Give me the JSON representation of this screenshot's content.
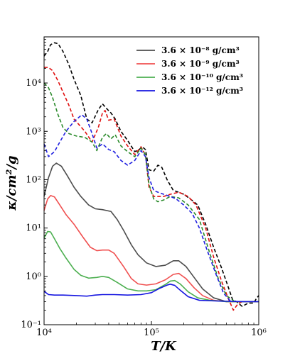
{
  "chart_data": {
    "type": "line",
    "xlabel": "T/K",
    "ylabel": "κ/cm²/g",
    "x_scale": "log",
    "y_scale": "log",
    "xlim": [
      10000,
      1000000
    ],
    "ylim": [
      0.1,
      90000
    ],
    "x_ticks": [
      {
        "value": 10000,
        "label": "10⁴"
      },
      {
        "value": 100000,
        "label": "10⁵"
      },
      {
        "value": 1000000,
        "label": "10⁶"
      }
    ],
    "y_ticks": [
      {
        "value": 0.1,
        "label": "10⁻¹"
      },
      {
        "value": 1,
        "label": "10⁰"
      },
      {
        "value": 10,
        "label": "10¹"
      },
      {
        "value": 100,
        "label": "10²"
      },
      {
        "value": 1000,
        "label": "10³"
      },
      {
        "value": 10000,
        "label": "10⁴"
      }
    ],
    "grid": false,
    "legend_position": "top-right",
    "series": [
      {
        "name": "3.6 × 10⁻⁸ g/cm³",
        "color": "#4d4d4d",
        "style": "solid",
        "points": [
          [
            10000,
            45
          ],
          [
            11000,
            110
          ],
          [
            12000,
            190
          ],
          [
            13000,
            220
          ],
          [
            14500,
            190
          ],
          [
            16500,
            120
          ],
          [
            19000,
            70
          ],
          [
            22000,
            45
          ],
          [
            26000,
            30
          ],
          [
            30000,
            25
          ],
          [
            35000,
            24
          ],
          [
            42000,
            22
          ],
          [
            48000,
            15
          ],
          [
            55000,
            9
          ],
          [
            65000,
            4.5
          ],
          [
            75000,
            2.8
          ],
          [
            90000,
            1.9
          ],
          [
            110000,
            1.6
          ],
          [
            135000,
            1.7
          ],
          [
            160000,
            2.1
          ],
          [
            180000,
            2.1
          ],
          [
            210000,
            1.6
          ],
          [
            250000,
            0.95
          ],
          [
            300000,
            0.55
          ],
          [
            380000,
            0.36
          ],
          [
            500000,
            0.3
          ],
          [
            700000,
            0.3
          ],
          [
            1000000,
            0.3
          ]
        ]
      },
      {
        "name": "3.6 × 10⁻⁹ g/cm³",
        "color": "#f05050",
        "style": "solid",
        "points": [
          [
            10000,
            23
          ],
          [
            10800,
            40
          ],
          [
            11500,
            47
          ],
          [
            12500,
            44
          ],
          [
            14000,
            30
          ],
          [
            16000,
            19
          ],
          [
            19000,
            12
          ],
          [
            23000,
            6.5
          ],
          [
            27000,
            4.0
          ],
          [
            31000,
            3.4
          ],
          [
            35000,
            3.5
          ],
          [
            40000,
            3.5
          ],
          [
            45000,
            3.0
          ],
          [
            55000,
            1.6
          ],
          [
            65000,
            0.9
          ],
          [
            75000,
            0.7
          ],
          [
            90000,
            0.66
          ],
          [
            110000,
            0.7
          ],
          [
            135000,
            0.85
          ],
          [
            160000,
            1.1
          ],
          [
            180000,
            1.15
          ],
          [
            210000,
            0.9
          ],
          [
            250000,
            0.58
          ],
          [
            300000,
            0.4
          ],
          [
            380000,
            0.32
          ],
          [
            500000,
            0.3
          ],
          [
            1000000,
            0.3
          ]
        ]
      },
      {
        "name": "3.6 × 10⁻¹⁰ g/cm³",
        "color": "#4caf50",
        "style": "solid",
        "points": [
          [
            10000,
            6.2
          ],
          [
            10800,
            8.5
          ],
          [
            11500,
            8.3
          ],
          [
            12500,
            6.0
          ],
          [
            14000,
            3.8
          ],
          [
            16000,
            2.4
          ],
          [
            19000,
            1.4
          ],
          [
            22000,
            1.05
          ],
          [
            26000,
            0.92
          ],
          [
            31000,
            0.95
          ],
          [
            35000,
            1.0
          ],
          [
            40000,
            0.95
          ],
          [
            48000,
            0.75
          ],
          [
            60000,
            0.55
          ],
          [
            75000,
            0.5
          ],
          [
            90000,
            0.5
          ],
          [
            110000,
            0.53
          ],
          [
            135000,
            0.68
          ],
          [
            150000,
            0.8
          ],
          [
            165000,
            0.82
          ],
          [
            185000,
            0.7
          ],
          [
            220000,
            0.48
          ],
          [
            270000,
            0.36
          ],
          [
            350000,
            0.32
          ],
          [
            500000,
            0.3
          ],
          [
            1000000,
            0.3
          ]
        ]
      },
      {
        "name": "3.6 × 10⁻¹² g/cm³",
        "color": "#1515e0",
        "style": "solid",
        "points": [
          [
            10000,
            0.49
          ],
          [
            11000,
            0.42
          ],
          [
            12500,
            0.41
          ],
          [
            15000,
            0.41
          ],
          [
            20000,
            0.4
          ],
          [
            25000,
            0.39
          ],
          [
            30000,
            0.41
          ],
          [
            35000,
            0.42
          ],
          [
            45000,
            0.42
          ],
          [
            60000,
            0.41
          ],
          [
            80000,
            0.42
          ],
          [
            100000,
            0.46
          ],
          [
            120000,
            0.57
          ],
          [
            140000,
            0.66
          ],
          [
            150000,
            0.69
          ],
          [
            165000,
            0.65
          ],
          [
            185000,
            0.52
          ],
          [
            220000,
            0.38
          ],
          [
            280000,
            0.32
          ],
          [
            400000,
            0.31
          ],
          [
            700000,
            0.3
          ],
          [
            1000000,
            0.3
          ]
        ]
      },
      {
        "name": "",
        "color": "#000000",
        "style": "dashed",
        "points": [
          [
            10000,
            36000
          ],
          [
            10800,
            45000
          ],
          [
            11500,
            62000
          ],
          [
            12500,
            68000
          ],
          [
            13500,
            65000
          ],
          [
            15000,
            45000
          ],
          [
            17000,
            24000
          ],
          [
            19000,
            12000
          ],
          [
            22000,
            5500
          ],
          [
            25000,
            1800
          ],
          [
            28000,
            1500
          ],
          [
            32000,
            2800
          ],
          [
            35000,
            3700
          ],
          [
            38000,
            3000
          ],
          [
            42000,
            2400
          ],
          [
            46000,
            1800
          ],
          [
            52000,
            1000
          ],
          [
            60000,
            650
          ],
          [
            70000,
            380
          ],
          [
            77000,
            420
          ],
          [
            82000,
            480
          ],
          [
            88000,
            420
          ],
          [
            95000,
            160
          ],
          [
            105000,
            150
          ],
          [
            115000,
            200
          ],
          [
            125000,
            180
          ],
          [
            140000,
            100
          ],
          [
            160000,
            60
          ],
          [
            180000,
            55
          ],
          [
            200000,
            50
          ],
          [
            230000,
            40
          ],
          [
            270000,
            30
          ],
          [
            320000,
            12
          ],
          [
            380000,
            4
          ],
          [
            450000,
            1.5
          ],
          [
            520000,
            0.6
          ],
          [
            570000,
            0.33
          ],
          [
            620000,
            0.3
          ],
          [
            700000,
            0.24
          ],
          [
            800000,
            0.28
          ],
          [
            900000,
            0.28
          ],
          [
            950000,
            0.35
          ],
          [
            1000000,
            0.4
          ]
        ]
      },
      {
        "name": "",
        "color": "#e01010",
        "style": "dashed",
        "points": [
          [
            10000,
            21000
          ],
          [
            11000,
            21000
          ],
          [
            12000,
            18000
          ],
          [
            13500,
            11000
          ],
          [
            15000,
            6500
          ],
          [
            17000,
            3500
          ],
          [
            19000,
            1800
          ],
          [
            21000,
            1400
          ],
          [
            24000,
            1000
          ],
          [
            28000,
            600
          ],
          [
            32000,
            1200
          ],
          [
            35000,
            2400
          ],
          [
            37000,
            2700
          ],
          [
            40000,
            1700
          ],
          [
            45000,
            1800
          ],
          [
            52000,
            800
          ],
          [
            60000,
            500
          ],
          [
            70000,
            330
          ],
          [
            80000,
            480
          ],
          [
            88000,
            320
          ],
          [
            95000,
            70
          ],
          [
            105000,
            45
          ],
          [
            115000,
            45
          ],
          [
            130000,
            45
          ],
          [
            150000,
            50
          ],
          [
            180000,
            55
          ],
          [
            220000,
            45
          ],
          [
            260000,
            30
          ],
          [
            320000,
            10
          ],
          [
            380000,
            2.5
          ],
          [
            450000,
            0.8
          ],
          [
            520000,
            0.35
          ],
          [
            580000,
            0.2
          ],
          [
            640000,
            0.27
          ],
          [
            700000,
            0.3
          ],
          [
            1000000,
            0.3
          ]
        ]
      },
      {
        "name": "",
        "color": "#2a8a2a",
        "style": "dashed",
        "points": [
          [
            10000,
            10000
          ],
          [
            11000,
            8000
          ],
          [
            12000,
            5000
          ],
          [
            13500,
            2200
          ],
          [
            15000,
            1200
          ],
          [
            17000,
            900
          ],
          [
            20000,
            800
          ],
          [
            24000,
            750
          ],
          [
            28000,
            600
          ],
          [
            31000,
            400
          ],
          [
            35000,
            750
          ],
          [
            38000,
            900
          ],
          [
            42000,
            700
          ],
          [
            46000,
            850
          ],
          [
            52000,
            500
          ],
          [
            60000,
            380
          ],
          [
            70000,
            300
          ],
          [
            80000,
            450
          ],
          [
            88000,
            330
          ],
          [
            95000,
            80
          ],
          [
            105000,
            40
          ],
          [
            115000,
            35
          ],
          [
            130000,
            38
          ],
          [
            150000,
            45
          ],
          [
            180000,
            42
          ],
          [
            220000,
            30
          ],
          [
            280000,
            15
          ],
          [
            350000,
            3
          ],
          [
            420000,
            0.9
          ],
          [
            500000,
            0.4
          ],
          [
            600000,
            0.3
          ],
          [
            1000000,
            0.3
          ]
        ]
      },
      {
        "name": "",
        "color": "#2020e0",
        "style": "dashed",
        "points": [
          [
            10000,
            550
          ],
          [
            11000,
            300
          ],
          [
            12500,
            380
          ],
          [
            14000,
            600
          ],
          [
            16000,
            1000
          ],
          [
            19000,
            1600
          ],
          [
            22500,
            2200
          ],
          [
            25000,
            1800
          ],
          [
            28000,
            900
          ],
          [
            31000,
            450
          ],
          [
            35000,
            550
          ],
          [
            40000,
            420
          ],
          [
            45000,
            380
          ],
          [
            52000,
            250
          ],
          [
            60000,
            200
          ],
          [
            70000,
            250
          ],
          [
            80000,
            400
          ],
          [
            88000,
            300
          ],
          [
            95000,
            110
          ],
          [
            105000,
            60
          ],
          [
            115000,
            55
          ],
          [
            130000,
            50
          ],
          [
            150000,
            45
          ],
          [
            170000,
            40
          ],
          [
            200000,
            30
          ],
          [
            240000,
            20
          ],
          [
            280000,
            10
          ],
          [
            330000,
            3.5
          ],
          [
            400000,
            1.1
          ],
          [
            470000,
            0.45
          ],
          [
            550000,
            0.3
          ],
          [
            700000,
            0.3
          ],
          [
            1000000,
            0.3
          ]
        ]
      }
    ]
  }
}
